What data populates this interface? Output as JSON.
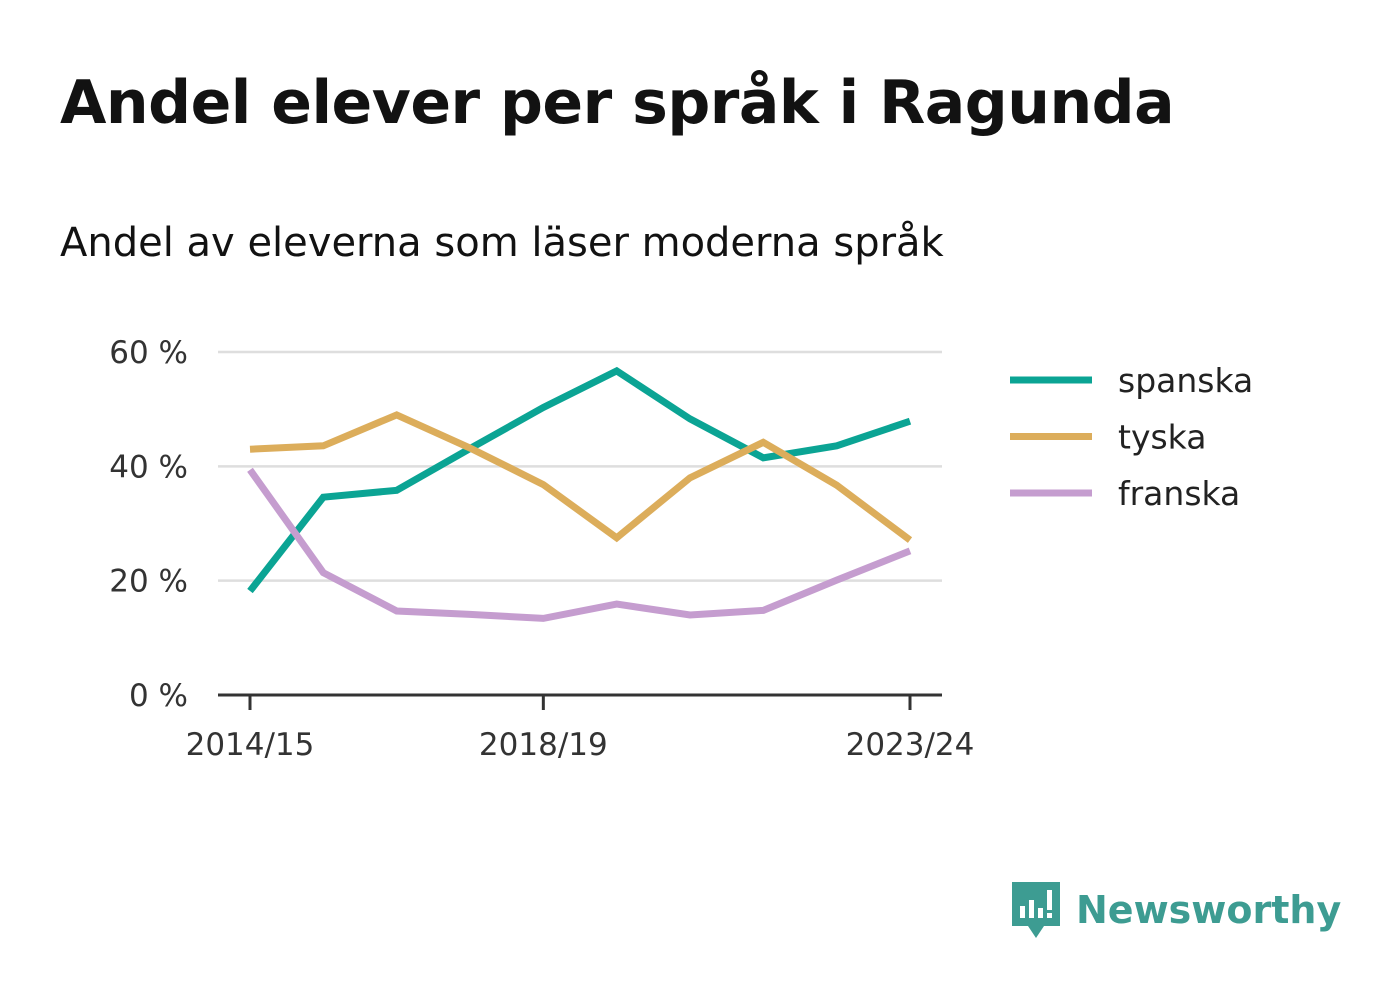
{
  "header": {
    "title": "Andel elever per språk i Ragunda",
    "subtitle": "Andel av eleverna som läser moderna språk"
  },
  "brand": {
    "name": "Newsworthy",
    "color": "#3d9c92",
    "icon": "newsworthy-logo-icon"
  },
  "chart_data": {
    "type": "line",
    "x": [
      "2014/15",
      "2015/16",
      "2016/17",
      "2017/18",
      "2018/19",
      "2019/20",
      "2020/21",
      "2021/22",
      "2022/23",
      "2023/24"
    ],
    "x_tick_labels": [
      "2014/15",
      "2018/19",
      "2023/24"
    ],
    "y_tick_labels": [
      "0 %",
      "20 %",
      "40 %",
      "60 %"
    ],
    "ylim": [
      0,
      60
    ],
    "y_ticks": [
      0,
      20,
      40,
      60
    ],
    "grid": true,
    "legend_position": "right",
    "series": [
      {
        "name": "spanska",
        "color": "#0ba494",
        "values": [
          18.2,
          34.6,
          35.8,
          43.1,
          50.3,
          56.7,
          48.3,
          41.5,
          43.6,
          47.9
        ]
      },
      {
        "name": "tyska",
        "color": "#dcad5b",
        "values": [
          43.0,
          43.6,
          49.0,
          43.2,
          36.8,
          27.5,
          38.0,
          44.2,
          36.7,
          27.1
        ]
      },
      {
        "name": "franska",
        "color": "#c59dcf",
        "values": [
          39.4,
          21.4,
          14.7,
          14.1,
          13.4,
          15.9,
          14.0,
          14.8,
          20.1,
          25.2
        ]
      }
    ]
  }
}
